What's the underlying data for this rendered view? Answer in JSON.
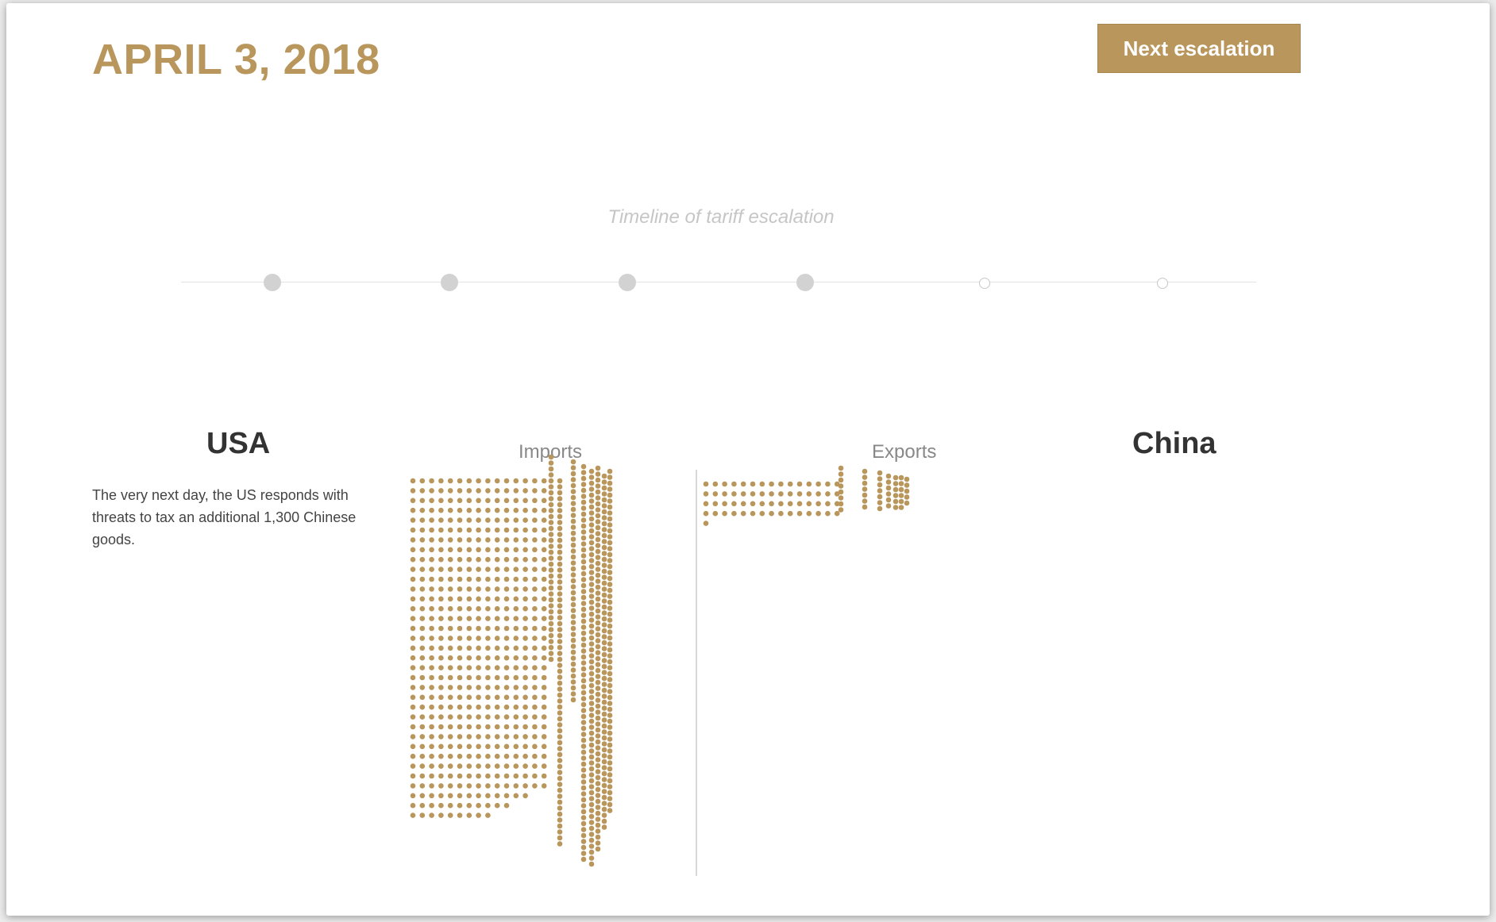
{
  "header": {
    "date": "APRIL 3, 2018",
    "next_button_label": "Next escalation"
  },
  "timeline": {
    "caption": "Timeline of tariff escalation",
    "points": [
      {
        "state": "reached"
      },
      {
        "state": "reached"
      },
      {
        "state": "reached"
      },
      {
        "state": "reached"
      },
      {
        "state": "upcoming"
      },
      {
        "state": "upcoming"
      }
    ]
  },
  "left_country": {
    "name": "USA",
    "description": "The very next day, the US responds with threats to tax an additional 1,300 Chinese goods."
  },
  "right_country": {
    "name": "China"
  },
  "chart_labels": {
    "imports": "Imports",
    "exports": "Exports"
  },
  "colors": {
    "accent": "#b8965c",
    "inactive_dot": "#d2d2d2",
    "divider": "#d8d8d8"
  }
}
